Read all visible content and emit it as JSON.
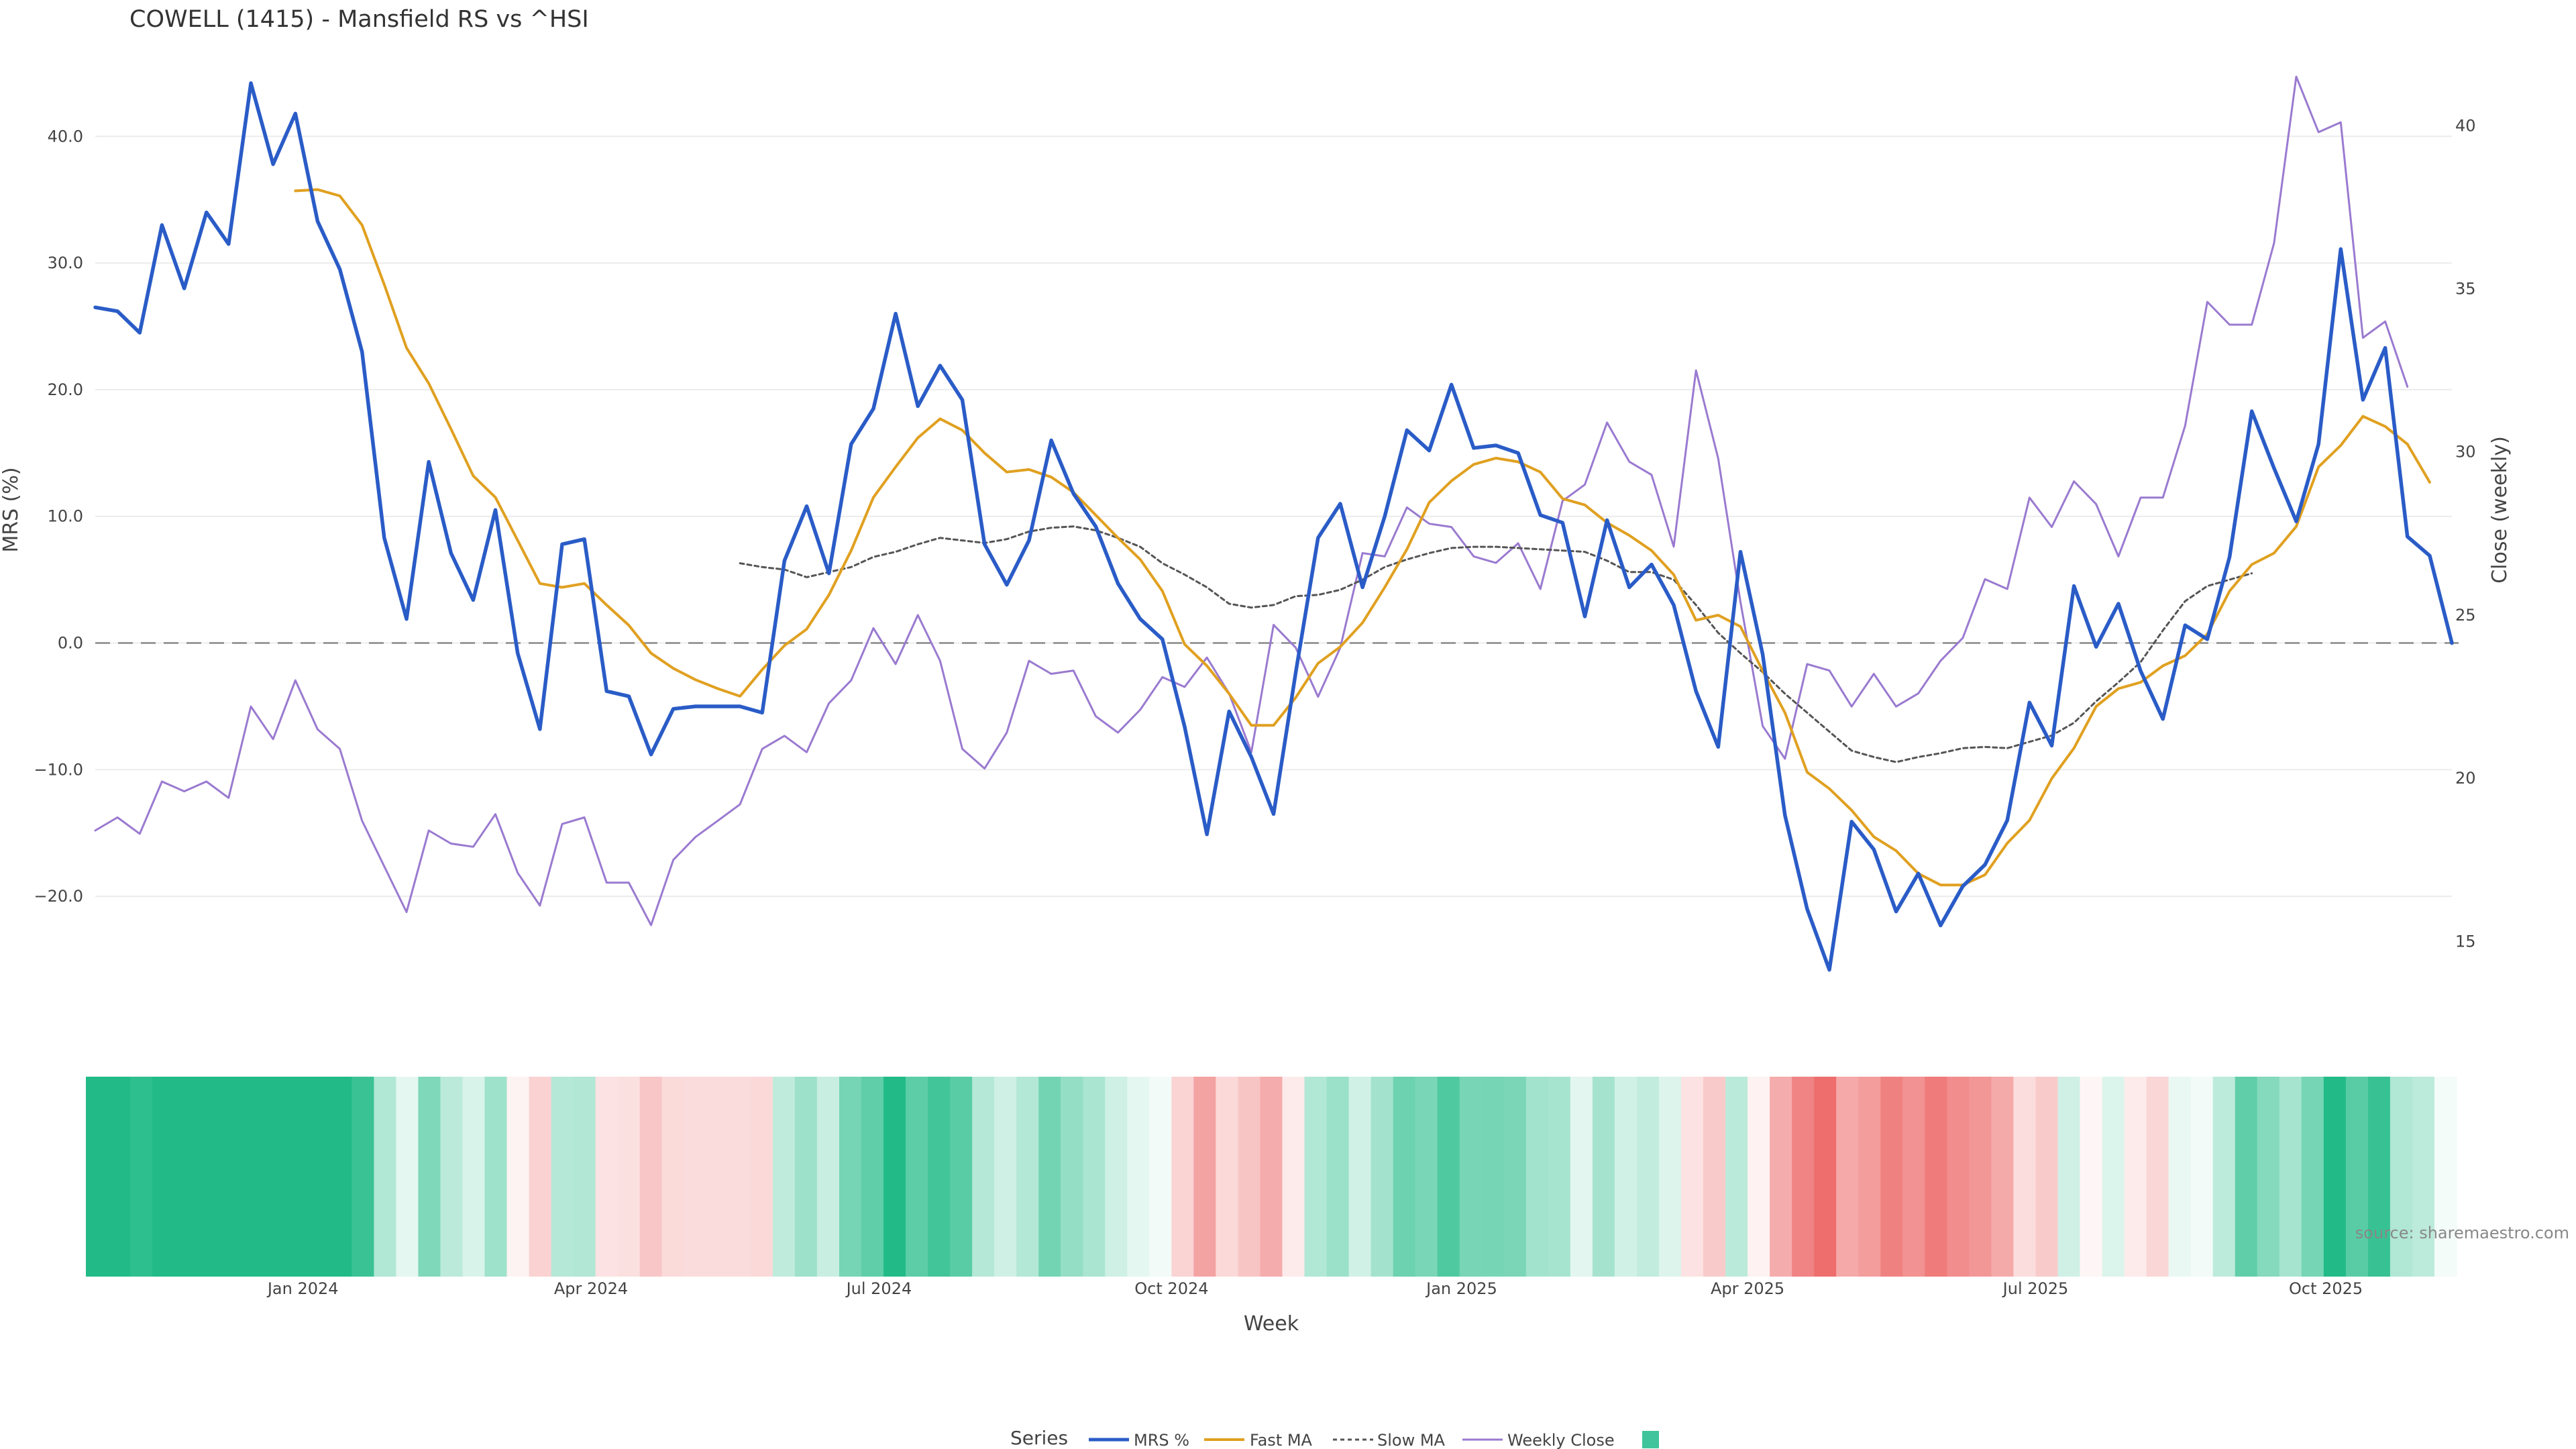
{
  "chart_data": {
    "type": "line",
    "title": "COWELL (1415) - Mansfield RS vs ^HSI",
    "xlabel": "Week",
    "ylabel": "MRS (%)",
    "y2label": "Close (weekly)",
    "ylim": [
      -30,
      46
    ],
    "y2lim": [
      12.5,
      42
    ],
    "yticks": [
      "40.0",
      "30.0",
      "20.0",
      "10.0",
      "0.0",
      "−10.0",
      "−20.0"
    ],
    "y2ticks": [
      "40",
      "35",
      "30",
      "25",
      "20",
      "15"
    ],
    "xticks": [
      {
        "label": "Jan 2024",
        "index": 9.8
      },
      {
        "label": "Apr 2024",
        "index": 22.8
      },
      {
        "label": "Jul 2024",
        "index": 35.8
      },
      {
        "label": "Oct 2024",
        "index": 49
      },
      {
        "label": "Jan 2025",
        "index": 62.1
      },
      {
        "label": "Apr 2025",
        "index": 75
      },
      {
        "label": "Jul 2025",
        "index": 88
      },
      {
        "label": "Oct 2025",
        "index": 101.1
      }
    ],
    "grid": true,
    "legend_position": "bottom",
    "source_text": "source: sharemaestro.com",
    "legend": {
      "title": "Series",
      "entries": [
        "MRS %",
        "Fast MA",
        "Slow MA",
        "Weekly Close",
        ""
      ]
    },
    "series": [
      {
        "name": "MRS %",
        "axis": "left",
        "color": "#2a5cc7",
        "values": [
          26.5,
          26.2,
          24.5,
          33,
          28,
          34,
          31.5,
          44.2,
          37.8,
          41.8,
          33.3,
          29.5,
          23,
          8.3,
          1.9,
          14.3,
          7.1,
          3.4,
          10.5,
          -0.8,
          -6.8,
          7.8,
          8.2,
          -3.8,
          -4.2,
          -8.8,
          -5.2,
          -5,
          -5,
          -5,
          -5.5,
          6.5,
          10.8,
          5.5,
          15.7,
          18.5,
          26,
          18.7,
          21.9,
          19.2,
          7.8,
          4.6,
          8.1,
          16,
          11.8,
          9.2,
          4.7,
          1.9,
          0.3,
          -6.6,
          -15.1,
          -5.4,
          -9,
          -13.5,
          -2.3,
          8.3,
          11,
          4.4,
          10,
          16.8,
          15.2,
          20.4,
          15.4,
          15.6,
          15,
          10.1,
          9.5,
          2.1,
          9.7,
          4.4,
          6.2,
          3,
          -3.8,
          -8.2,
          7.2,
          -0.9,
          -13.6,
          -21,
          -25.8,
          -14.1,
          -16.3,
          -21.2,
          -18.2,
          -22.3,
          -19.2,
          -17.5,
          -14,
          -4.7,
          -8.1,
          4.5,
          -0.3,
          3.1,
          -2.2,
          -6,
          1.4,
          0.3,
          6.8,
          18.3,
          13.8,
          9.6,
          15.7,
          31.1,
          19.2,
          23.3,
          8.4,
          6.9,
          0
        ]
      },
      {
        "name": "Fast MA",
        "axis": "left",
        "color": "#e0a020",
        "values": [
          null,
          null,
          null,
          null,
          null,
          null,
          null,
          null,
          null,
          35.7,
          35.8,
          35.3,
          33,
          28.3,
          23.3,
          20.5,
          16.9,
          13.2,
          11.5,
          8.1,
          4.7,
          4.4,
          4.7,
          3,
          1.4,
          -0.8,
          -2,
          -2.9,
          -3.6,
          -4.2,
          -2.1,
          -0.2,
          1.1,
          3.8,
          7.3,
          11.5,
          13.9,
          16.2,
          17.7,
          16.8,
          15,
          13.5,
          13.7,
          13.1,
          11.9,
          10.1,
          8.3,
          6.6,
          4.1,
          -0.1,
          -1.8,
          -4,
          -6.5,
          -6.5,
          -4.3,
          -1.6,
          -0.3,
          1.6,
          4.4,
          7.4,
          11.1,
          12.8,
          14.1,
          14.6,
          14.3,
          13.5,
          11.4,
          10.9,
          9.5,
          8.5,
          7.3,
          5.4,
          1.8,
          2.2,
          1.3,
          -2.2,
          -5.5,
          -10.2,
          -11.5,
          -13.2,
          -15.3,
          -16.4,
          -18.2,
          -19.1,
          -19.1,
          -18.3,
          -15.8,
          -14,
          -10.7,
          -8.3,
          -5,
          -3.6,
          -3.1,
          -1.8,
          -1,
          0.7,
          4.1,
          6.2,
          7.1,
          9.2,
          13.9,
          15.6,
          17.9,
          17.1,
          15.7,
          12.7
        ]
      },
      {
        "name": "Slow MA",
        "axis": "left",
        "color": "#555555",
        "dash": "6,5",
        "values": [
          null,
          null,
          null,
          null,
          null,
          null,
          null,
          null,
          null,
          null,
          null,
          null,
          null,
          null,
          null,
          null,
          null,
          null,
          null,
          null,
          null,
          null,
          null,
          null,
          null,
          null,
          null,
          null,
          null,
          6.3,
          6,
          5.8,
          5.2,
          5.6,
          6,
          6.8,
          7.2,
          7.8,
          8.3,
          8.1,
          7.9,
          8.2,
          8.8,
          9.1,
          9.2,
          8.9,
          8.3,
          7.6,
          6.3,
          5.4,
          4.4,
          3.1,
          2.8,
          3,
          3.7,
          3.8,
          4.2,
          5,
          6,
          6.6,
          7.1,
          7.5,
          7.6,
          7.6,
          7.5,
          7.4,
          7.3,
          7.2,
          6.5,
          5.6,
          5.6,
          5,
          3,
          0.8,
          -0.8,
          -2.3,
          -4,
          -5.5,
          -7,
          -8.5,
          -9,
          -9.4,
          -9,
          -8.7,
          -8.3,
          -8.2,
          -8.3,
          -7.8,
          -7.3,
          -6.3,
          -4.6,
          -3.1,
          -1.5,
          1,
          3.3,
          4.5,
          5,
          5.5
        ]
      },
      {
        "name": "Weekly Close",
        "axis": "right",
        "color": "#9a7ad0",
        "values": [
          18.4,
          18.8,
          18.3,
          19.9,
          19.6,
          19.9,
          19.4,
          22.2,
          21.2,
          23,
          21.5,
          20.9,
          18.7,
          17.3,
          15.9,
          18.4,
          18,
          17.9,
          18.9,
          17.1,
          16.1,
          18.6,
          18.8,
          16.8,
          16.8,
          15.5,
          17.5,
          18.2,
          18.7,
          19.2,
          20.9,
          21.3,
          20.8,
          22.3,
          23,
          24.6,
          23.5,
          25,
          23.6,
          20.9,
          20.3,
          21.4,
          23.6,
          23.2,
          23.3,
          21.9,
          21.4,
          22.1,
          23.1,
          22.8,
          23.7,
          22.6,
          20.8,
          24.7,
          24,
          22.5,
          24,
          26.9,
          26.8,
          28.3,
          27.8,
          27.7,
          26.8,
          26.6,
          27.2,
          25.8,
          28.5,
          29,
          30.9,
          29.7,
          29.3,
          27.1,
          32.5,
          29.8,
          25.4,
          21.6,
          20.6,
          23.5,
          23.3,
          22.2,
          23.2,
          22.2,
          22.6,
          23.6,
          24.3,
          26.1,
          25.8,
          28.6,
          27.7,
          29.1,
          28.4,
          26.8,
          28.6,
          28.6,
          30.8,
          34.6,
          33.9,
          33.9,
          36.4,
          41.5,
          39.8,
          40.1,
          33.5,
          34,
          32
        ]
      }
    ],
    "heatmap_strip": {
      "description_scale": "green = MRS above 0, red = MRS below 0",
      "colors": {
        "positive": "#22bb88",
        "negative": "#ee6e6e"
      }
    }
  }
}
